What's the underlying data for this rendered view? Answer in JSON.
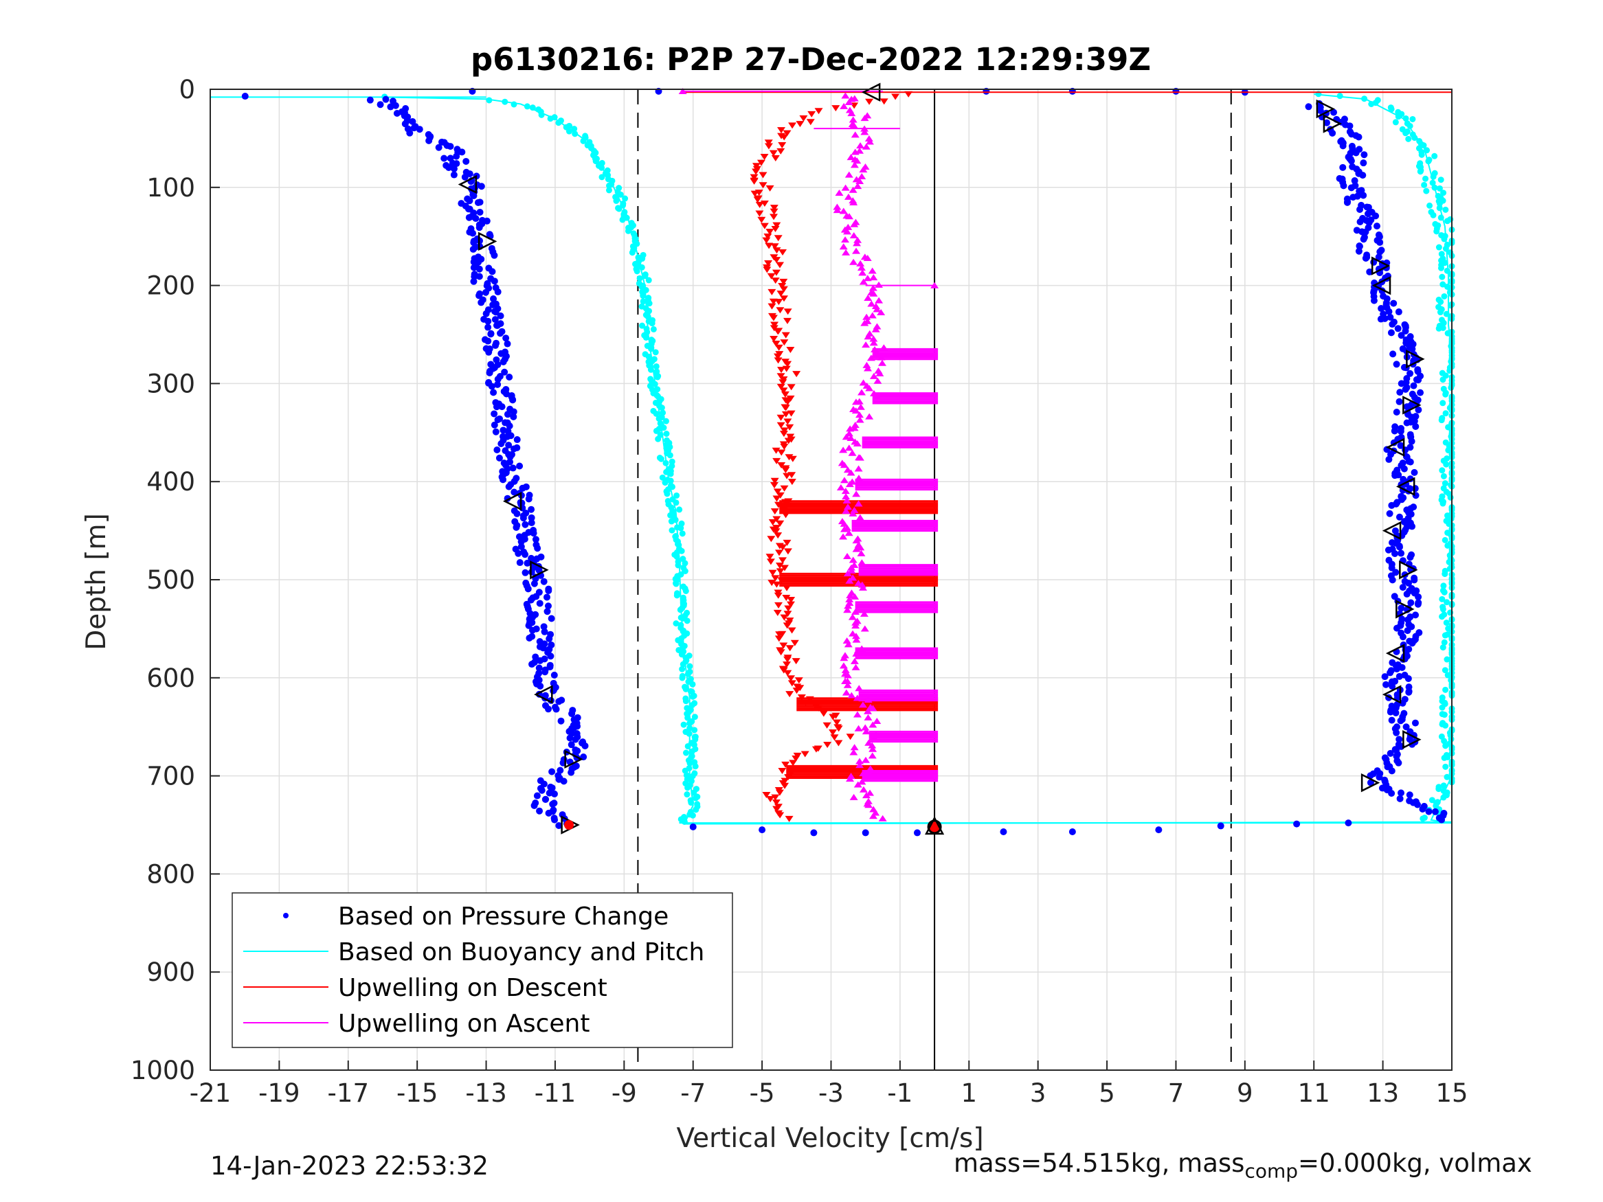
{
  "chart_data": {
    "type": "scatter",
    "title": "p6130216: P2P 27-Dec-2022 12:29:39Z",
    "xlabel": "Vertical Velocity [cm/s]",
    "ylabel": "Depth [m]",
    "xlim": [
      -21,
      15
    ],
    "ylim": [
      0,
      1000
    ],
    "y_reversed": true,
    "grid": true,
    "x_ticks": [
      -21,
      -19,
      -17,
      -15,
      -13,
      -11,
      -9,
      -7,
      -5,
      -3,
      -1,
      1,
      3,
      5,
      7,
      9,
      11,
      13,
      15
    ],
    "y_ticks": [
      0,
      100,
      200,
      300,
      400,
      500,
      600,
      700,
      800,
      900,
      1000
    ],
    "reference_lines": {
      "dashed_x": [
        -8.6,
        8.6
      ],
      "solid_x": [
        0
      ]
    },
    "legend": {
      "placement": "bottom-left"
    },
    "colors": {
      "pressure": "#0000ff",
      "buoyancy": "#00ffff",
      "descent": "#ff0000",
      "ascent": "#ff00ff",
      "marker": "#000000"
    },
    "series": [
      {
        "name": "Based on Pressure Change",
        "style": "dots",
        "color": "#0000ff",
        "descent": [
          [
            -20.3,
            8
          ],
          [
            -17.2,
            8
          ],
          [
            -16.2,
            10
          ],
          [
            -15.8,
            15
          ],
          [
            -15.6,
            25
          ],
          [
            -15.2,
            40
          ],
          [
            -14.6,
            50
          ],
          [
            -14.0,
            65
          ],
          [
            -13.8,
            80
          ],
          [
            -13.5,
            95
          ],
          [
            -13.4,
            110
          ],
          [
            -13.3,
            140
          ],
          [
            -13.1,
            160
          ],
          [
            -13.1,
            185
          ],
          [
            -12.9,
            220
          ],
          [
            -12.7,
            260
          ],
          [
            -12.6,
            300
          ],
          [
            -12.5,
            340
          ],
          [
            -12.3,
            380
          ],
          [
            -12.1,
            410
          ],
          [
            -11.9,
            440
          ],
          [
            -11.8,
            470
          ],
          [
            -11.6,
            490
          ],
          [
            -11.5,
            520
          ],
          [
            -11.4,
            560
          ],
          [
            -11.3,
            600
          ],
          [
            -11.2,
            620
          ],
          [
            -10.8,
            635
          ],
          [
            -10.3,
            655
          ],
          [
            -10.2,
            670
          ],
          [
            -10.6,
            690
          ],
          [
            -11.1,
            705
          ],
          [
            -11.3,
            730
          ],
          [
            -10.9,
            745
          ],
          [
            -10.6,
            750
          ]
        ],
        "ascent": [
          [
            11.0,
            15
          ],
          [
            11.6,
            30
          ],
          [
            12.0,
            50
          ],
          [
            12.2,
            70
          ],
          [
            12.0,
            100
          ],
          [
            12.5,
            130
          ],
          [
            12.6,
            160
          ],
          [
            12.9,
            185
          ],
          [
            13.0,
            210
          ],
          [
            13.3,
            240
          ],
          [
            13.6,
            265
          ],
          [
            13.8,
            300
          ],
          [
            13.7,
            340
          ],
          [
            13.4,
            370
          ],
          [
            13.7,
            400
          ],
          [
            13.5,
            440
          ],
          [
            13.5,
            480
          ],
          [
            13.7,
            520
          ],
          [
            13.7,
            560
          ],
          [
            13.4,
            600
          ],
          [
            13.5,
            630
          ],
          [
            13.7,
            660
          ],
          [
            13.2,
            690
          ],
          [
            12.7,
            705
          ],
          [
            13.8,
            725
          ],
          [
            14.5,
            740
          ],
          [
            14.9,
            745
          ]
        ],
        "bottom": [
          [
            -7.0,
            752
          ],
          [
            -5.0,
            755
          ],
          [
            -3.5,
            758
          ],
          [
            -2.0,
            758
          ],
          [
            -0.5,
            758
          ],
          [
            2.0,
            757
          ],
          [
            4.0,
            757
          ],
          [
            6.5,
            755
          ],
          [
            8.3,
            751
          ],
          [
            10.5,
            749
          ],
          [
            12.0,
            748
          ]
        ],
        "surface": [
          [
            -13.4,
            2
          ],
          [
            -8.0,
            2
          ],
          [
            1.5,
            2
          ],
          [
            4.0,
            2
          ],
          [
            7.0,
            2
          ],
          [
            9.0,
            3
          ]
        ]
      },
      {
        "name": "Based on Buoyancy and Pitch",
        "style": "line+dots",
        "color": "#00ffff",
        "descent": [
          [
            -16.0,
            8
          ],
          [
            -13.0,
            10
          ],
          [
            -12.0,
            15
          ],
          [
            -11.0,
            30
          ],
          [
            -10.2,
            50
          ],
          [
            -9.8,
            70
          ],
          [
            -9.3,
            100
          ],
          [
            -8.9,
            130
          ],
          [
            -8.6,
            170
          ],
          [
            -8.4,
            200
          ],
          [
            -8.3,
            250
          ],
          [
            -8.1,
            300
          ],
          [
            -7.9,
            350
          ],
          [
            -7.7,
            400
          ],
          [
            -7.5,
            430
          ],
          [
            -7.4,
            480
          ],
          [
            -7.35,
            530
          ],
          [
            -7.25,
            580
          ],
          [
            -7.1,
            620
          ],
          [
            -7.1,
            660
          ],
          [
            -7.1,
            700
          ],
          [
            -7.0,
            730
          ],
          [
            -7.2,
            745
          ],
          [
            -7.4,
            748
          ]
        ],
        "ascent": [
          [
            11.0,
            5
          ],
          [
            12.5,
            10
          ],
          [
            13.6,
            30
          ],
          [
            14.2,
            60
          ],
          [
            14.5,
            100
          ],
          [
            14.8,
            140
          ],
          [
            14.9,
            190
          ],
          [
            14.9,
            240
          ],
          [
            15.0,
            270
          ],
          [
            15.0,
            700
          ],
          [
            14.6,
            730
          ],
          [
            14.4,
            745
          ]
        ]
      },
      {
        "name": "Upwelling on Descent",
        "style": "triangle-down",
        "color": "#ff0000",
        "profile": [
          [
            -1.0,
            5
          ],
          [
            -2.0,
            15
          ],
          [
            -3.5,
            25
          ],
          [
            -4.2,
            40
          ],
          [
            -4.6,
            55
          ],
          [
            -4.9,
            75
          ],
          [
            -5.0,
            100
          ],
          [
            -4.7,
            150
          ],
          [
            -4.6,
            200
          ],
          [
            -4.4,
            260
          ],
          [
            -4.2,
            300
          ],
          [
            -4.3,
            350
          ],
          [
            -4.4,
            400
          ],
          [
            -4.5,
            450
          ],
          [
            -4.5,
            500
          ],
          [
            -4.3,
            550
          ],
          [
            -4.2,
            600
          ],
          [
            -4.0,
            620
          ],
          [
            -3.0,
            640
          ],
          [
            -2.7,
            660
          ],
          [
            -3.7,
            680
          ],
          [
            -4.5,
            700
          ],
          [
            -4.7,
            720
          ],
          [
            -4.5,
            735
          ],
          [
            -4.0,
            745
          ]
        ],
        "spikes": [
          [
            426,
            -4.5,
            0.1
          ],
          [
            500,
            -4.5,
            0.1
          ],
          [
            627,
            -4.0,
            0.1
          ],
          [
            696,
            -4.3,
            0.1
          ]
        ]
      },
      {
        "name": "Upwelling on Ascent",
        "style": "triangle-up",
        "color": "#ff00ff",
        "profile": [
          [
            -2.6,
            5
          ],
          [
            -2.1,
            30
          ],
          [
            -2.2,
            70
          ],
          [
            -2.6,
            120
          ],
          [
            -2.4,
            160
          ],
          [
            -1.9,
            200
          ],
          [
            -1.7,
            250
          ],
          [
            -1.8,
            300
          ],
          [
            -2.3,
            350
          ],
          [
            -2.5,
            400
          ],
          [
            -2.4,
            450
          ],
          [
            -2.2,
            500
          ],
          [
            -2.3,
            550
          ],
          [
            -2.4,
            600
          ],
          [
            -1.9,
            650
          ],
          [
            -2.2,
            700
          ],
          [
            -2.0,
            730
          ],
          [
            -1.5,
            745
          ]
        ],
        "spikes": [
          [
            270,
            -1.8,
            0.1
          ],
          [
            315,
            -1.8,
            0.1
          ],
          [
            360,
            -2.1,
            0.1
          ],
          [
            403,
            -2.3,
            0.1
          ],
          [
            445,
            -2.4,
            0.1
          ],
          [
            490,
            -2.2,
            0.1
          ],
          [
            528,
            -2.3,
            0.1
          ],
          [
            575,
            -2.3,
            0.1
          ],
          [
            618,
            -2.2,
            0.1
          ],
          [
            660,
            -1.9,
            0.1
          ],
          [
            700,
            -2.1,
            0.1
          ]
        ],
        "surface_line": [
          -7.3,
          -1.5,
          0
        ]
      }
    ],
    "markers": {
      "left": [
        [
          -13.5,
          97,
          "left"
        ],
        [
          -13.0,
          155,
          "right"
        ],
        [
          -12.2,
          420,
          "left"
        ],
        [
          -11.5,
          490,
          "right"
        ],
        [
          -11.3,
          617,
          "left"
        ],
        [
          -10.5,
          683,
          "right"
        ],
        [
          -10.6,
          750,
          "right"
        ]
      ],
      "right": [
        [
          11.3,
          20,
          "right"
        ],
        [
          11.5,
          35,
          "right"
        ],
        [
          12.9,
          180,
          "right"
        ],
        [
          13.0,
          200,
          "left"
        ],
        [
          13.9,
          275,
          "right"
        ],
        [
          13.8,
          322,
          "right"
        ],
        [
          13.4,
          365,
          "left"
        ],
        [
          13.7,
          405,
          "left"
        ],
        [
          13.3,
          450,
          "left"
        ],
        [
          13.7,
          490,
          "right"
        ],
        [
          13.6,
          530,
          "right"
        ],
        [
          13.4,
          575,
          "left"
        ],
        [
          13.3,
          617,
          "left"
        ],
        [
          13.8,
          663,
          "right"
        ],
        [
          12.6,
          707,
          "right"
        ]
      ],
      "center": [
        [
          -1.8,
          3,
          "left"
        ],
        [
          0,
          752,
          "star"
        ]
      ]
    }
  },
  "footer": {
    "timestamp": "14-Jan-2023 22:53:32",
    "mass_part1": "mass=54.515kg, mass",
    "mass_sub": "comp",
    "mass_part2": "=0.000kg, volmax"
  }
}
